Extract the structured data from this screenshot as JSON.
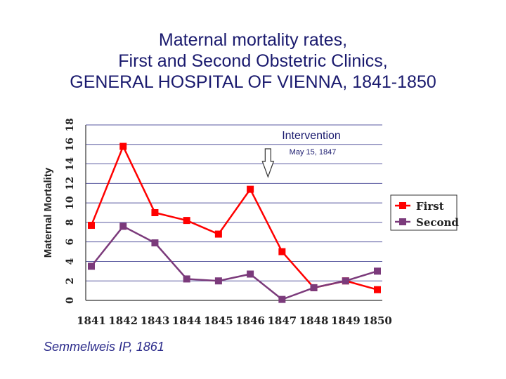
{
  "title_lines": [
    "Maternal mortality rates,",
    "First and Second Obstetric Clinics,",
    "GENERAL HOSPITAL OF VIENNA, 1841-1850"
  ],
  "citation": "Semmelweis IP,  1861",
  "chart_data": {
    "type": "line",
    "title": "Maternal mortality rates, First and Second Obstetric Clinics, GENERAL HOSPITAL OF VIENNA, 1841-1850",
    "xlabel": "",
    "ylabel": "Maternal Mortality",
    "x": [
      "1841",
      "1842",
      "1843",
      "1844",
      "1845",
      "1846",
      "1847",
      "1848",
      "1849",
      "1850"
    ],
    "ylim": [
      0,
      18
    ],
    "yticks": [
      0,
      2,
      4,
      6,
      8,
      10,
      12,
      14,
      16,
      18
    ],
    "grid": true,
    "legend_position": "right",
    "series": [
      {
        "name": "First",
        "color": "#ff0000",
        "values": [
          7.7,
          15.8,
          9.0,
          8.2,
          6.8,
          11.4,
          5.0,
          1.3,
          2.0,
          1.1
        ]
      },
      {
        "name": "Second",
        "color": "#7b3a7b",
        "values": [
          3.5,
          7.6,
          5.9,
          2.2,
          2.0,
          2.7,
          0.1,
          1.3,
          2.0,
          3.0
        ]
      }
    ],
    "annotation": {
      "label": "Intervention",
      "sublabel": "May 15, 1847",
      "x": "1847"
    }
  }
}
